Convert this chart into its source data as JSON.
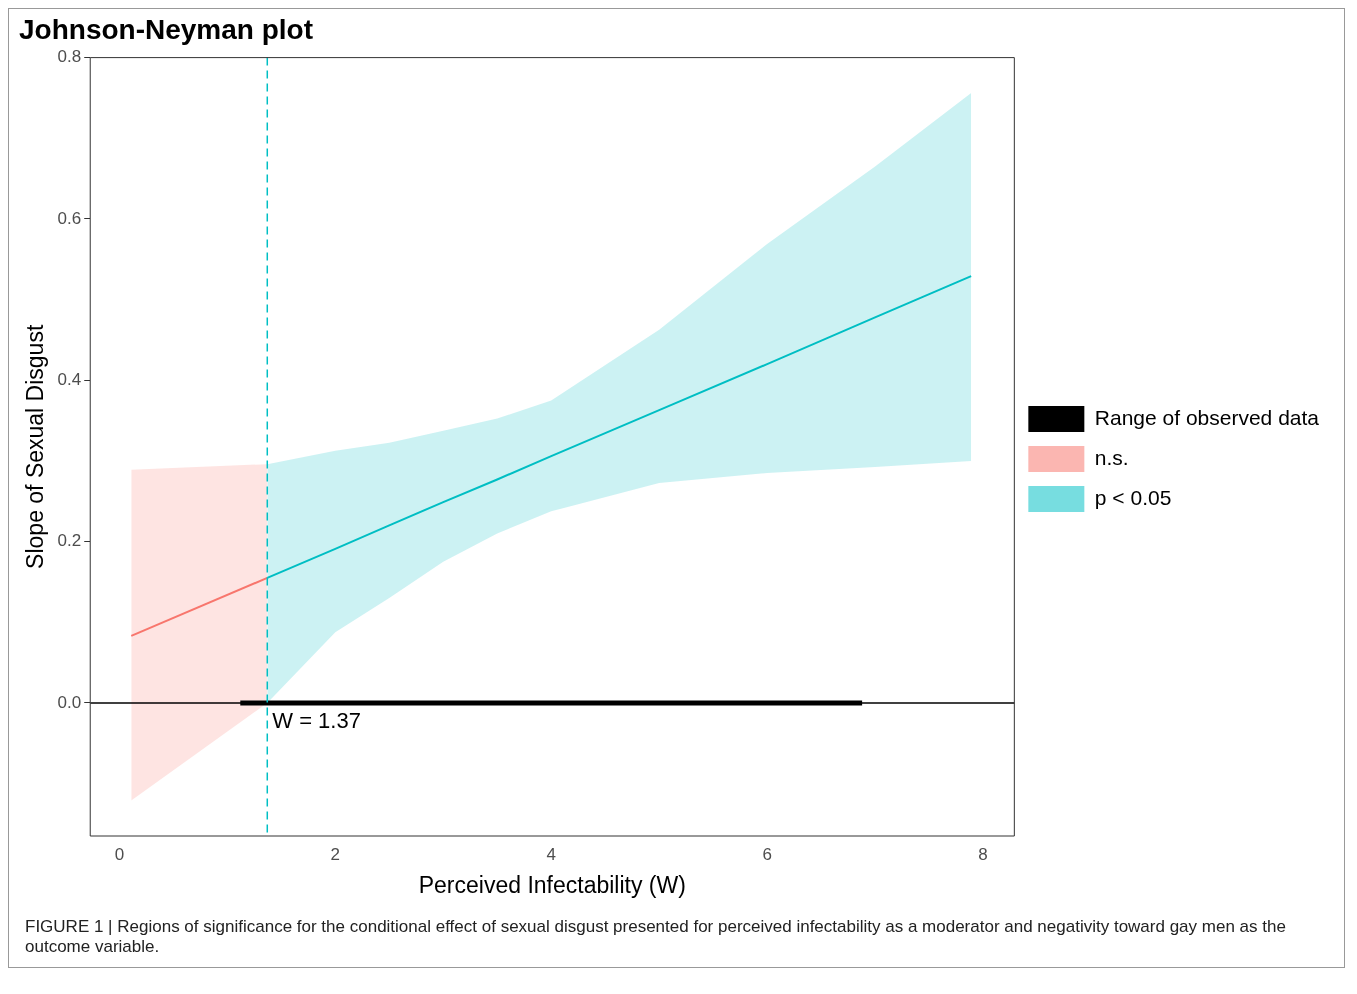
{
  "chart_data": {
    "type": "line",
    "title": "Johnson-Neyman plot",
    "xlabel": "Perceived Infectability (W)",
    "ylabel": "Slope of Sexual Disgust",
    "xlim": [
      -0.27,
      8.29
    ],
    "ylim": [
      -0.165,
      0.8
    ],
    "xticks": [
      0,
      2,
      4,
      6,
      8
    ],
    "yticks": [
      {
        "value": 0,
        "label": "0.0"
      },
      {
        "value": 0.2,
        "label": "0.2"
      },
      {
        "value": 0.4,
        "label": "0.4"
      },
      {
        "value": 0.6,
        "label": "0.6"
      },
      {
        "value": 0.8,
        "label": "0.8"
      }
    ],
    "grid": false,
    "legend": "right",
    "series": [
      {
        "name": "Range of observed data",
        "color": "#000000",
        "x": [
          1.12,
          6.88
        ],
        "values": [
          0,
          0
        ]
      },
      {
        "name": "n.s.",
        "color": "#f8766d",
        "x": [
          0.11,
          1.37
        ],
        "values": [
          0.083,
          0.155
        ],
        "lower": [
          -0.121,
          0
        ],
        "upper": [
          0.289,
          0.296
        ]
      },
      {
        "name": "p < 0.05",
        "color": "#00bfc4",
        "x": [
          1.37,
          2,
          2.5,
          3,
          3.5,
          4,
          5,
          6,
          7,
          7.89
        ],
        "values": [
          0.155,
          0.191,
          0.22,
          0.249,
          0.277,
          0.306,
          0.363,
          0.42,
          0.478,
          0.529
        ],
        "lower": [
          0,
          0.0875,
          0.13,
          0.175,
          0.21,
          0.2375,
          0.2725,
          0.285,
          0.2925,
          0.3
        ],
        "upper": [
          0.296,
          0.3125,
          0.3225,
          0.3375,
          0.3525,
          0.375,
          0.4625,
          0.569,
          0.665,
          0.756
        ]
      }
    ],
    "ref_lines": [
      {
        "axis": "y",
        "value": 0,
        "color": "#000000"
      },
      {
        "axis": "x",
        "value": 1.37,
        "label": "W = 1.37",
        "color": "#00bfc4",
        "line_style": "dashed"
      }
    ],
    "annotations": [
      "FIGURE 1 | Regions of significance for the conditional effect of sexual disgust presented for perceived infectability as a moderator and negativity toward gay men as the outcome variable."
    ]
  }
}
